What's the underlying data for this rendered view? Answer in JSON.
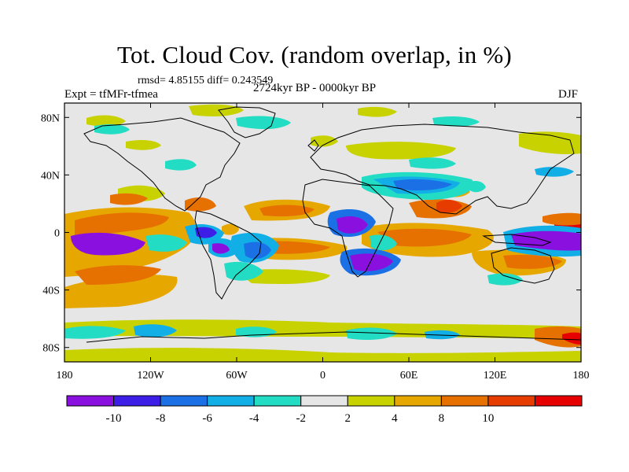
{
  "title": "Tot. Cloud Cov. (random overlap, in %)",
  "stats_text": "rmsd= 4.85155  diff= 0.243549",
  "left_label": "Expt = tfMFr-tfmea",
  "center_label": "2724kyr BP - 0000kyr BP",
  "right_label": "DJF",
  "map": {
    "lon_range": [
      -180,
      180
    ],
    "lat_range": [
      -90,
      90
    ],
    "x_ticks": [
      {
        "value": -180,
        "label": "180"
      },
      {
        "value": -120,
        "label": "120W"
      },
      {
        "value": -60,
        "label": "60W"
      },
      {
        "value": 0,
        "label": "0"
      },
      {
        "value": 60,
        "label": "60E"
      },
      {
        "value": 120,
        "label": "120E"
      },
      {
        "value": 180,
        "label": "180"
      }
    ],
    "y_ticks": [
      {
        "value": 80,
        "label": "80N"
      },
      {
        "value": 40,
        "label": "40N"
      },
      {
        "value": 0,
        "label": "0"
      },
      {
        "value": -40,
        "label": "40S"
      },
      {
        "value": -80,
        "label": "80S"
      }
    ],
    "background_color": "#e6e6e6"
  },
  "colorbar": {
    "colors": [
      "#8a10e0",
      "#3c1ee6",
      "#1c70e6",
      "#12aee6",
      "#22dcc4",
      "#e6e6e6",
      "#c8d200",
      "#e6a800",
      "#e67000",
      "#e63c00",
      "#e60000"
    ],
    "labels": [
      {
        "after_box": 1,
        "text": "-10"
      },
      {
        "after_box": 2,
        "text": "-8"
      },
      {
        "after_box": 3,
        "text": "-6"
      },
      {
        "after_box": 4,
        "text": "-4"
      },
      {
        "after_box": 5,
        "text": "-2"
      },
      {
        "after_box": 6,
        "text": "2"
      },
      {
        "after_box": 7,
        "text": "4"
      },
      {
        "after_box": 8,
        "text": "8"
      },
      {
        "after_box": 9,
        "text": "10"
      }
    ]
  }
}
